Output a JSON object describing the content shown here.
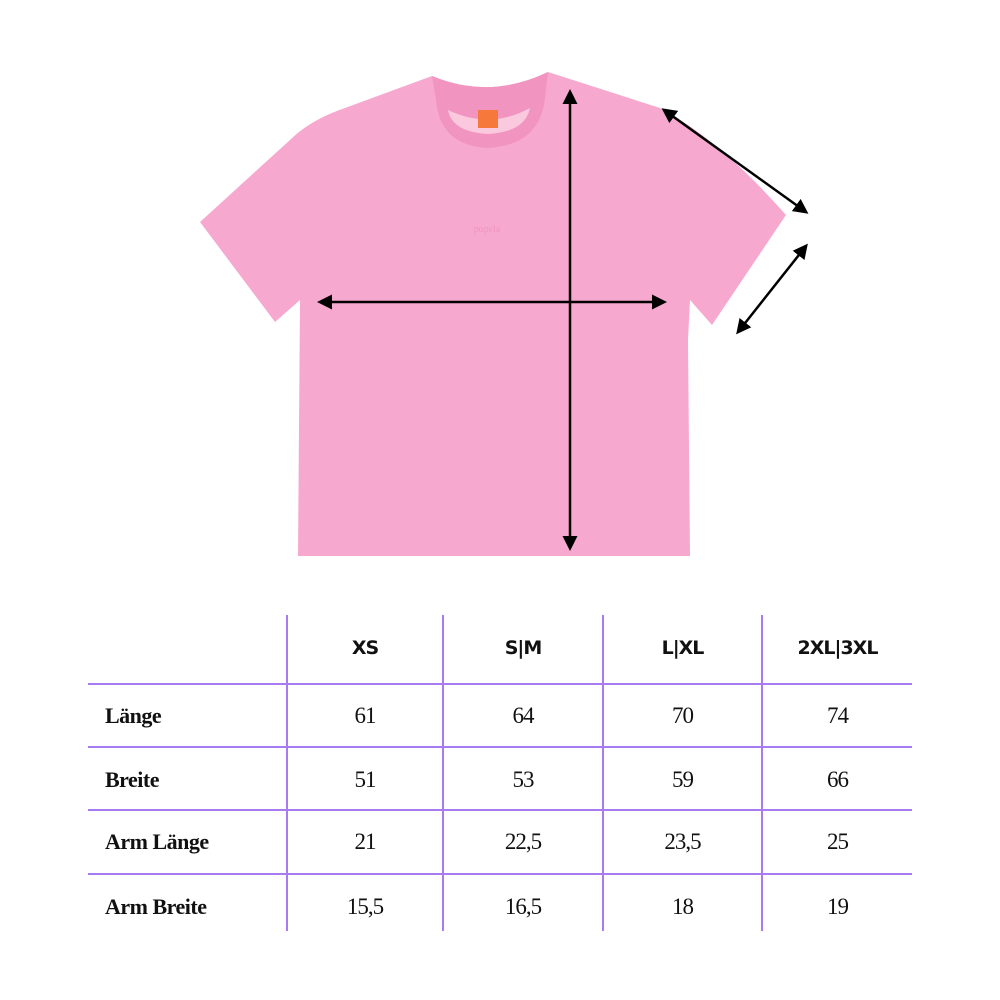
{
  "product": {
    "logo_text": "popela",
    "shirt_color": "#f7a8cf",
    "rib_color": "#f294c0",
    "label_color": "#f6783a"
  },
  "colors": {
    "grid": "#a77cf2",
    "arrow": "#000000",
    "text": "#111111"
  },
  "size_table": {
    "columns": [
      "XS",
      "S|M",
      "L|XL",
      "2XL|3XL"
    ],
    "rows": [
      {
        "label": "Länge",
        "values": [
          "61",
          "64",
          "70",
          "74"
        ]
      },
      {
        "label": "Breite",
        "values": [
          "51",
          "53",
          "59",
          "66"
        ]
      },
      {
        "label": "Arm Länge",
        "values": [
          "21",
          "22,5",
          "23,5",
          "25"
        ]
      },
      {
        "label": "Arm Breite",
        "values": [
          "15,5",
          "16,5",
          "18",
          "19"
        ]
      }
    ]
  }
}
